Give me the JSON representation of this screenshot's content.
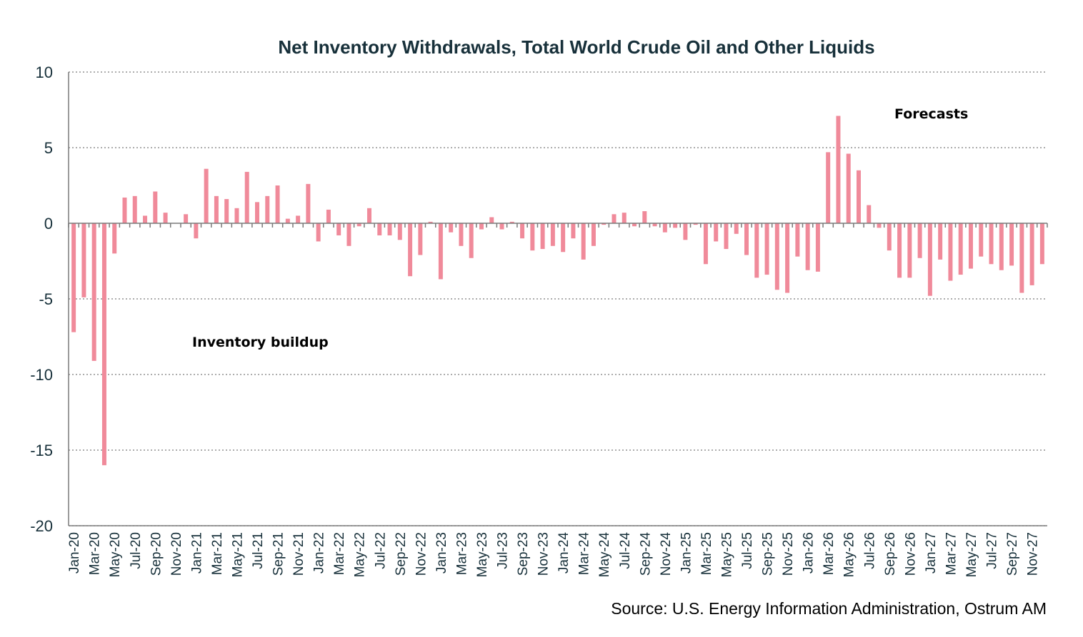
{
  "chart_data": {
    "type": "bar",
    "title": "Net Inventory Withdrawals, Total World Crude Oil and Other Liquids",
    "ylim": [
      -20,
      10
    ],
    "yticks": [
      10,
      5,
      0,
      -5,
      -10,
      -15,
      -20
    ],
    "grid": true,
    "bar_color": "#f08a9a",
    "text_color": "#17303a",
    "annotations": {
      "forecasts": "Forecasts",
      "buildup": "Inventory buildup"
    },
    "source": "Source: U.S. Energy Information Administration, Ostrum AM",
    "categories": [
      "Jan-20",
      "Feb-20",
      "Mar-20",
      "Apr-20",
      "May-20",
      "Jun-20",
      "Jul-20",
      "Aug-20",
      "Sep-20",
      "Oct-20",
      "Nov-20",
      "Dec-20",
      "Jan-21",
      "Feb-21",
      "Mar-21",
      "Apr-21",
      "May-21",
      "Jun-21",
      "Jul-21",
      "Aug-21",
      "Sep-21",
      "Oct-21",
      "Nov-21",
      "Dec-21",
      "Jan-22",
      "Feb-22",
      "Mar-22",
      "Apr-22",
      "May-22",
      "Jun-22",
      "Jul-22",
      "Aug-22",
      "Sep-22",
      "Oct-22",
      "Nov-22",
      "Dec-22",
      "Jan-23",
      "Feb-23",
      "Mar-23",
      "Apr-23",
      "May-23",
      "Jun-23",
      "Jul-23",
      "Aug-23",
      "Sep-23",
      "Oct-23",
      "Nov-23",
      "Dec-23",
      "Jan-24",
      "Feb-24",
      "Mar-24",
      "Apr-24",
      "May-24",
      "Jun-24",
      "Jul-24",
      "Aug-24",
      "Sep-24",
      "Oct-24",
      "Nov-24",
      "Dec-24",
      "Jan-25",
      "Feb-25",
      "Mar-25",
      "Apr-25",
      "May-25",
      "Jun-25",
      "Jul-25",
      "Aug-25",
      "Sep-25",
      "Oct-25",
      "Nov-25",
      "Dec-25",
      "Jan-26",
      "Feb-26",
      "Mar-26",
      "Apr-26",
      "May-26",
      "Jun-26",
      "Jul-26",
      "Aug-26",
      "Sep-26",
      "Oct-26",
      "Nov-26",
      "Dec-26",
      "Jan-27",
      "Feb-27",
      "Mar-27",
      "Apr-27",
      "May-27",
      "Jun-27",
      "Jul-27",
      "Aug-27",
      "Sep-27",
      "Oct-27",
      "Nov-27",
      "Dec-27"
    ],
    "values": [
      -7.2,
      -4.9,
      -9.1,
      -16.0,
      -2.0,
      1.7,
      1.8,
      0.5,
      2.1,
      0.7,
      0.0,
      0.6,
      -1.0,
      3.6,
      1.8,
      1.6,
      1.0,
      3.4,
      1.4,
      1.8,
      2.5,
      0.3,
      0.5,
      2.6,
      -1.2,
      0.9,
      -0.8,
      -1.5,
      -0.2,
      1.0,
      -0.8,
      -0.8,
      -1.1,
      -3.5,
      -2.1,
      0.1,
      -3.7,
      -0.6,
      -1.5,
      -2.3,
      -0.4,
      0.4,
      -0.4,
      0.1,
      -1.0,
      -1.8,
      -1.7,
      -1.5,
      -1.9,
      -1.0,
      -2.4,
      -1.5,
      -0.1,
      0.6,
      0.7,
      -0.2,
      0.8,
      -0.2,
      -0.6,
      -0.3,
      -1.1,
      -0.1,
      -2.7,
      -1.2,
      -1.7,
      -0.7,
      -2.1,
      -3.6,
      -3.4,
      -4.4,
      -4.6,
      -2.2,
      -3.1,
      -3.2,
      4.7,
      7.1,
      4.6,
      3.5,
      1.2,
      -0.3,
      -1.8,
      -3.6,
      -3.6,
      -2.3,
      -4.8,
      -2.4,
      -3.8,
      -3.4,
      -3.0,
      -2.2,
      -2.7,
      -3.1,
      -2.8,
      -4.6,
      -4.1,
      -2.7
    ]
  }
}
